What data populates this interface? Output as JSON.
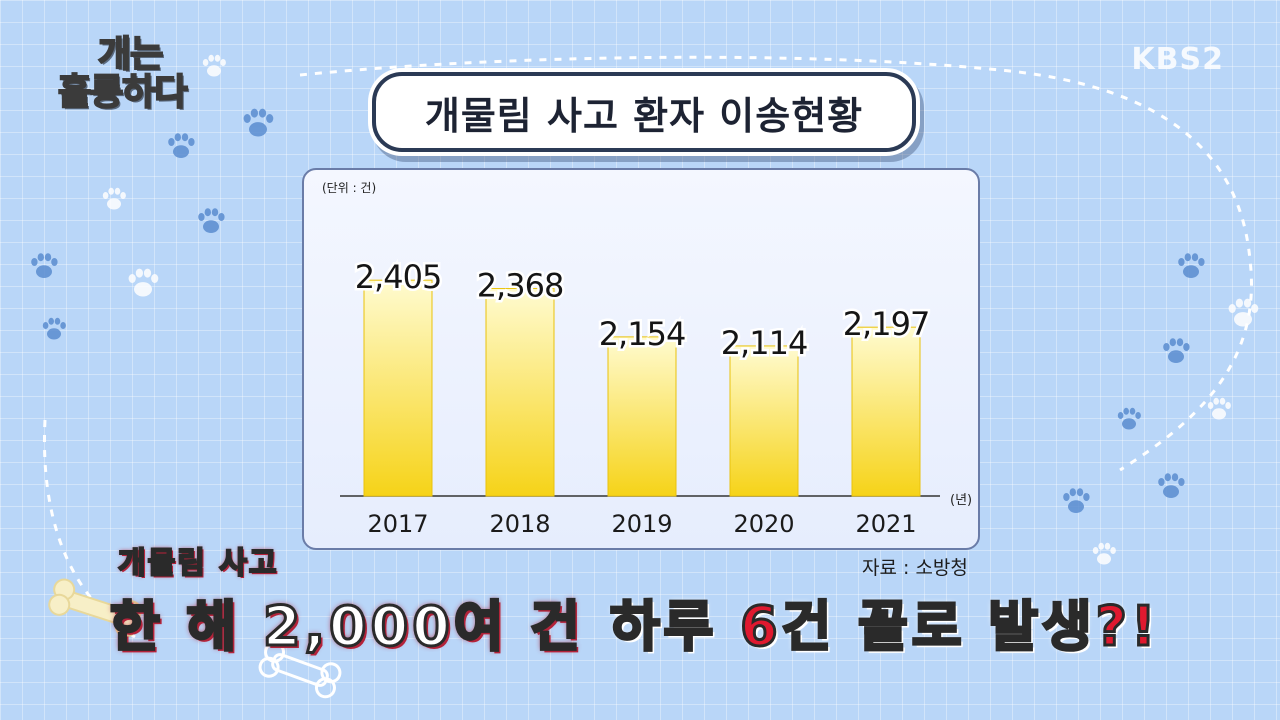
{
  "show_logo": {
    "line1": "개는",
    "line2": "훌륭하다"
  },
  "channel_logo": "KBS2",
  "title": "개물림 사고 환자 이송현황",
  "source": "자료 : 소방청",
  "caption": {
    "top": "개물림 사고",
    "main_white": "한 해 2,000여 건",
    "main_red": "하루 6건 꼴로 발생?!"
  },
  "colors": {
    "background": "#b9d6f8",
    "bar_light": "#fffbd0",
    "bar_dark": "#f6d318",
    "accent_red": "#e0192f"
  },
  "chart_data": {
    "type": "bar",
    "unit_label": "(단위 : 건)",
    "x_unit_label": "(년)",
    "categories": [
      "2017",
      "2018",
      "2019",
      "2020",
      "2021"
    ],
    "values": [
      2405,
      2368,
      2154,
      2114,
      2197
    ],
    "value_labels": [
      "2,405",
      "2,368",
      "2,154",
      "2,114",
      "2,197"
    ],
    "ylim": [
      1450,
      2450
    ],
    "grid": false,
    "legend": "none"
  }
}
